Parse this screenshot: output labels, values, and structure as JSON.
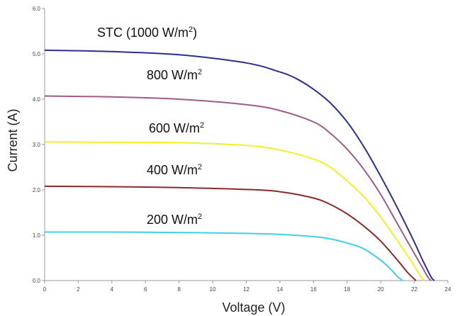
{
  "chart_data": {
    "type": "line",
    "title": "",
    "xlabel": "Voltage (V)",
    "ylabel": "Current (A)",
    "xlim": [
      0,
      24
    ],
    "ylim": [
      0,
      6
    ],
    "x_ticks": [
      "0",
      "2",
      "4",
      "6",
      "8",
      "10",
      "12",
      "14",
      "16",
      "18",
      "20",
      "22",
      "24"
    ],
    "y_ticks": [
      "0.0",
      "1.0",
      "2.0",
      "3.0",
      "4.0",
      "5.0",
      "6.0"
    ],
    "grid": false,
    "legend": "none",
    "series": [
      {
        "label_main": "STC (1000 W/m",
        "label_sup": "2",
        "label_tail": ")",
        "color": "#2b2f8f",
        "x": [
          0,
          4,
          8,
          12,
          14,
          15,
          16,
          17,
          18,
          19,
          20,
          21,
          22,
          22.5,
          23,
          23.2
        ],
        "y": [
          5.08,
          5.05,
          4.98,
          4.8,
          4.6,
          4.45,
          4.22,
          3.92,
          3.5,
          2.95,
          2.3,
          1.6,
          0.85,
          0.45,
          0.08,
          0
        ]
      },
      {
        "label_main": "800 W/m",
        "label_sup": "2",
        "label_tail": "",
        "color": "#a05a8a",
        "x": [
          0,
          4,
          8,
          12,
          14,
          16,
          17,
          18,
          19,
          20,
          21,
          22,
          22.5,
          22.8,
          23
        ],
        "y": [
          4.07,
          4.05,
          4.0,
          3.88,
          3.75,
          3.5,
          3.25,
          2.9,
          2.45,
          1.9,
          1.25,
          0.6,
          0.28,
          0.08,
          0
        ]
      },
      {
        "label_main": "600 W/m",
        "label_sup": "2",
        "label_tail": "",
        "color": "#f2ee2a",
        "x": [
          0,
          4,
          8,
          12,
          14,
          16,
          17,
          18,
          19,
          20,
          21,
          22,
          22.4,
          22.6
        ],
        "y": [
          3.06,
          3.05,
          3.04,
          2.98,
          2.88,
          2.68,
          2.5,
          2.2,
          1.85,
          1.4,
          0.88,
          0.32,
          0.08,
          0
        ]
      },
      {
        "label_main": "400 W/m",
        "label_sup": "2",
        "label_tail": "",
        "color": "#8a2a2a",
        "x": [
          0,
          4,
          8,
          12,
          14,
          16,
          17,
          18,
          19,
          20,
          21,
          21.6,
          22.1
        ],
        "y": [
          2.08,
          2.07,
          2.05,
          2.01,
          1.96,
          1.82,
          1.68,
          1.47,
          1.2,
          0.87,
          0.45,
          0.18,
          0
        ]
      },
      {
        "label_main": "200 W/m",
        "label_sup": "2",
        "label_tail": "",
        "color": "#3fd0e8",
        "x": [
          0,
          4,
          8,
          12,
          14,
          16,
          17,
          18,
          19,
          20,
          20.6,
          21,
          21.3
        ],
        "y": [
          1.07,
          1.07,
          1.06,
          1.04,
          1.02,
          0.97,
          0.92,
          0.83,
          0.7,
          0.45,
          0.25,
          0.09,
          0
        ]
      }
    ]
  }
}
